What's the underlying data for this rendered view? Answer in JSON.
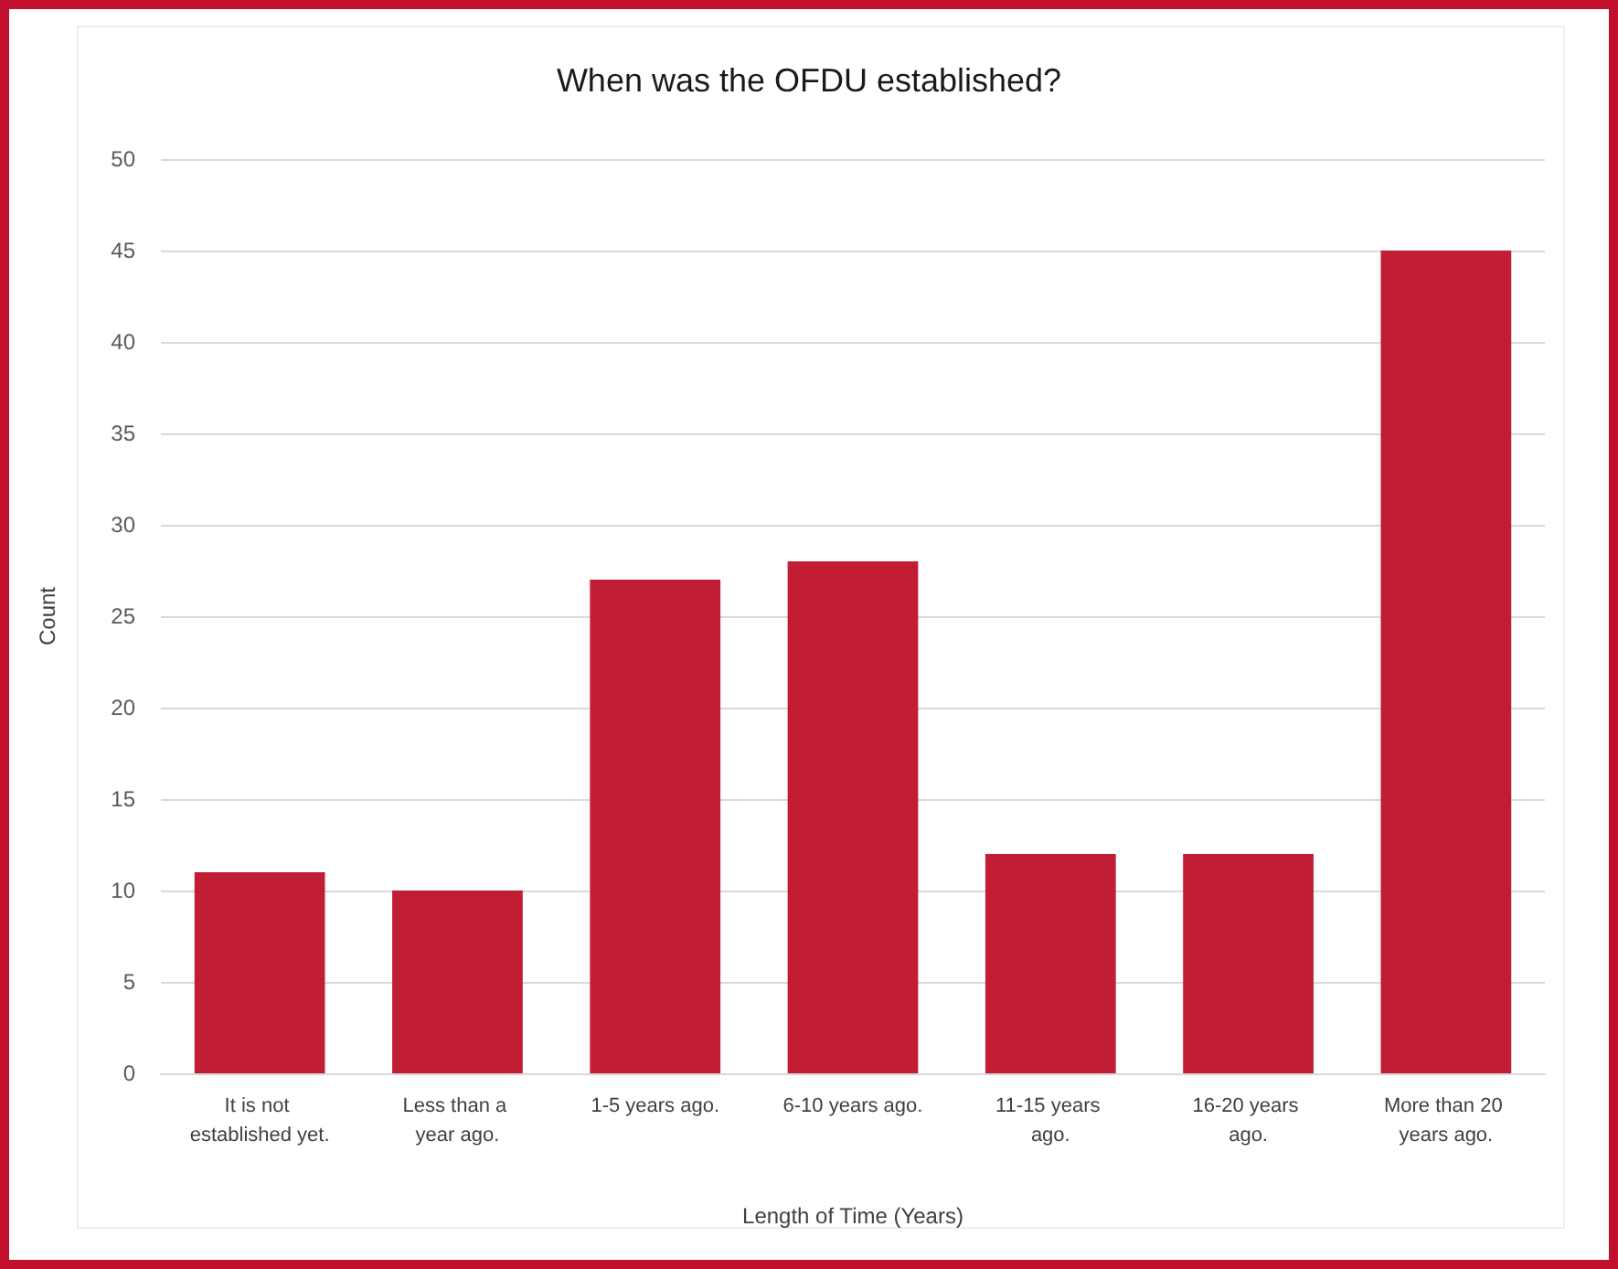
{
  "chart_data": {
    "type": "bar",
    "title": "When was the OFDU established?",
    "xlabel": "Length of Time (Years)",
    "ylabel": "Count",
    "categories": [
      "It is not established yet.",
      "Less than a year ago.",
      "1-5 years ago.",
      "6-10 years ago.",
      "11-15 years ago.",
      "16-20 years ago.",
      "More than 20 years ago."
    ],
    "values": [
      11,
      10,
      27,
      28,
      12,
      12,
      45
    ],
    "color": "#c11e35",
    "ylim": [
      0,
      50
    ],
    "yticks": [
      0,
      5,
      10,
      15,
      20,
      25,
      30,
      35,
      40,
      45,
      50
    ],
    "grid": "y"
  }
}
